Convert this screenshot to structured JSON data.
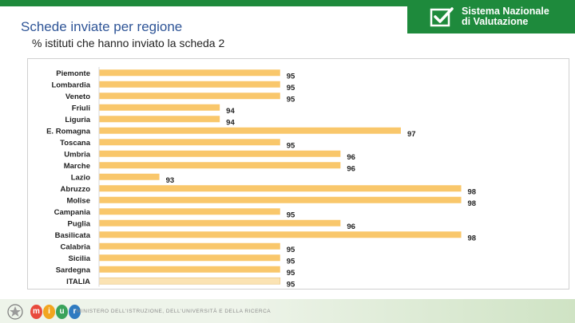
{
  "header": {
    "title": "Schede inviate per regione",
    "subtitle": "% istituti che hanno inviato la scheda 2",
    "brand_line1": "Sistema Nazionale",
    "brand_line2": "di Valutazione"
  },
  "footer": {
    "logo_letters": [
      "m",
      "i",
      "u",
      "r"
    ],
    "ministry": "MINISTERO DELL'ISTRUZIONE, DELL'UNIVERSITÀ E DELLA RICERCA"
  },
  "colors": {
    "bar": "#f9c76b",
    "bar_total": "#fbe3b3",
    "brand_green": "#1e8a3c",
    "title_blue": "#2f5597"
  },
  "chart_data": {
    "type": "bar",
    "orientation": "horizontal",
    "title": "Schede inviate per regione",
    "subtitle": "% istituti che hanno inviato la scheda 2",
    "xlabel": "",
    "ylabel": "",
    "xlim": [
      92,
      98.8
    ],
    "grid": false,
    "legend": "none",
    "categories": [
      "Piemonte",
      "Lombardia",
      "Veneto",
      "Friuli",
      "Liguria",
      "E. Romagna",
      "Toscana",
      "Umbria",
      "Marche",
      "Lazio",
      "Abruzzo",
      "Molise",
      "Campania",
      "Puglia",
      "Basilicata",
      "Calabria",
      "Sicilia",
      "Sardegna",
      "ITALIA"
    ],
    "values": [
      95,
      95,
      95,
      94,
      94,
      97,
      95,
      96,
      96,
      93,
      98,
      98,
      95,
      96,
      98,
      95,
      95,
      95,
      95
    ],
    "highlight": "ITALIA"
  }
}
